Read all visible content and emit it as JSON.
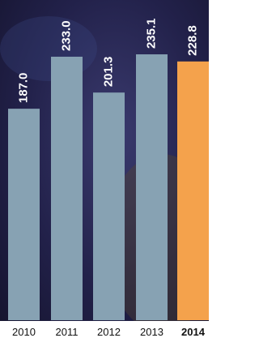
{
  "chart_data": {
    "type": "bar",
    "categories": [
      "2010",
      "2011",
      "2012",
      "2013",
      "2014"
    ],
    "values": [
      187.0,
      233.0,
      201.3,
      235.1,
      228.8
    ],
    "value_labels": [
      "187.0",
      "233.0",
      "201.3",
      "235.1",
      "228.8"
    ],
    "colors": [
      "#87a2b3",
      "#87a2b3",
      "#87a2b3",
      "#87a2b3",
      "#f4a24c"
    ]
  }
}
